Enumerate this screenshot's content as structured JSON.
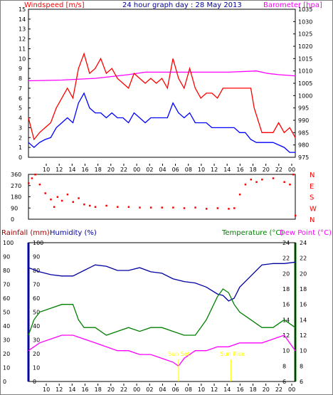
{
  "header": {
    "windspeed_label": "Windspeed [m/s]",
    "title": "24 hour graph day : 28 May 2013",
    "barometer_label": "Barometer [hpa]",
    "rainfall_label": "Rainfall (mm)",
    "humidity_label": "Humidity (%)",
    "temperature_label": "Temperature (°C)",
    "dewpoint_label": "Dew Point (°C)",
    "sunset_label": "Sun Set",
    "sunrise_label": "Sun Rise"
  },
  "x_ticks": [
    "10",
    "12",
    "14",
    "16",
    "18",
    "20",
    "22",
    "00",
    "02",
    "04",
    "06",
    "08",
    "10",
    "12",
    "14",
    "16",
    "18",
    "20",
    "22",
    "00"
  ],
  "colors": {
    "wind_gust": "#ff0000",
    "wind_avg": "#0000ff",
    "barometer": "#ff00ff",
    "direction": "#ff0000",
    "humidity": "#0000a0",
    "temperature": "#008000",
    "dewpoint": "#ff00ff",
    "sun_marker": "#ffff00",
    "rain_axis": "#0000ff",
    "temp_axis": "#008000"
  },
  "chart_data": [
    {
      "type": "line",
      "title": "24 hour graph day : 28 May 2013",
      "ylabel": "Windspeed [m/s]",
      "y2label": "Barometer [hpa]",
      "ylim": [
        0,
        15
      ],
      "y2lim": [
        975,
        1035
      ],
      "yticks": [
        "0",
        "1",
        "2",
        "3",
        "4",
        "5",
        "6",
        "7",
        "8",
        "9",
        "10",
        "11",
        "12",
        "13",
        "14",
        "15"
      ],
      "y2ticks": [
        "975",
        "980",
        "985",
        "990",
        "995",
        "1000",
        "1005",
        "1010",
        "1015",
        "1020",
        "1025",
        "1030",
        "1035"
      ],
      "x_hours": [
        0,
        24
      ],
      "series": [
        {
          "points": [
            [
              0,
              4
            ],
            [
              0.5,
              1.8
            ],
            [
              1,
              2.5
            ],
            [
              1.5,
              3
            ],
            [
              2,
              3.5
            ],
            [
              2.5,
              5
            ],
            [
              3,
              6
            ],
            [
              3.5,
              7
            ],
            [
              4,
              6
            ],
            [
              4.5,
              9
            ],
            [
              5,
              10.5
            ],
            [
              5.5,
              8.5
            ],
            [
              6,
              9
            ],
            [
              6.5,
              10
            ],
            [
              7,
              8.5
            ],
            [
              7.5,
              9
            ],
            [
              8,
              8
            ],
            [
              8.5,
              7.5
            ],
            [
              9,
              7
            ],
            [
              9.5,
              8.5
            ],
            [
              10,
              8
            ],
            [
              10.5,
              7.5
            ],
            [
              11,
              8
            ],
            [
              11.5,
              7.5
            ],
            [
              12,
              8
            ],
            [
              12.5,
              7
            ],
            [
              13,
              10
            ],
            [
              13.5,
              8
            ],
            [
              14,
              7
            ],
            [
              14.5,
              9
            ],
            [
              15,
              7
            ],
            [
              15.5,
              6
            ],
            [
              16,
              6.5
            ],
            [
              16.5,
              6.5
            ],
            [
              17,
              6
            ],
            [
              17.5,
              7
            ],
            [
              18,
              7
            ],
            [
              19,
              7
            ],
            [
              20,
              7
            ],
            [
              20.3,
              5
            ],
            [
              21,
              2.5
            ],
            [
              22,
              2.5
            ],
            [
              22.5,
              3.5
            ],
            [
              23,
              2.5
            ],
            [
              23.5,
              3
            ],
            [
              24,
              2
            ]
          ]
        },
        {
          "points": [
            [
              0,
              1.5
            ],
            [
              0.5,
              1
            ],
            [
              1,
              1.5
            ],
            [
              1.5,
              1.8
            ],
            [
              2,
              2
            ],
            [
              2.5,
              3
            ],
            [
              3,
              3.5
            ],
            [
              3.5,
              4
            ],
            [
              4,
              3.5
            ],
            [
              4.5,
              5.5
            ],
            [
              5,
              6.5
            ],
            [
              5.5,
              5
            ],
            [
              6,
              4.5
            ],
            [
              6.5,
              4.5
            ],
            [
              7,
              4
            ],
            [
              7.5,
              4.5
            ],
            [
              8,
              4
            ],
            [
              8.5,
              4
            ],
            [
              9,
              3.5
            ],
            [
              9.5,
              4.5
            ],
            [
              10,
              4
            ],
            [
              10.5,
              3.5
            ],
            [
              11,
              4
            ],
            [
              11.5,
              4
            ],
            [
              12,
              4
            ],
            [
              12.5,
              4
            ],
            [
              13,
              5.5
            ],
            [
              13.5,
              4.5
            ],
            [
              14,
              4
            ],
            [
              14.5,
              4.5
            ],
            [
              15,
              3.5
            ],
            [
              15.5,
              3.5
            ],
            [
              16,
              3.5
            ],
            [
              16.5,
              3
            ],
            [
              17,
              3
            ],
            [
              17.5,
              3
            ],
            [
              18,
              3
            ],
            [
              18.5,
              3
            ],
            [
              19,
              2.5
            ],
            [
              19.5,
              2.5
            ],
            [
              20,
              1.8
            ],
            [
              20.5,
              1.5
            ],
            [
              21,
              1.5
            ],
            [
              22,
              1.5
            ],
            [
              23,
              1
            ],
            [
              23.5,
              0.5
            ],
            [
              24,
              0.5
            ]
          ]
        },
        {
          "points": [
            [
              0,
              1006
            ],
            [
              3,
              1006.3
            ],
            [
              6,
              1007
            ],
            [
              9,
              1008.5
            ],
            [
              10.5,
              1009.5
            ],
            [
              12,
              1009.5
            ],
            [
              15,
              1009.5
            ],
            [
              18,
              1009.5
            ],
            [
              20.5,
              1010
            ],
            [
              21.5,
              1009
            ],
            [
              22.5,
              1008.5
            ],
            [
              24,
              1008
            ]
          ]
        }
      ]
    },
    {
      "type": "scatter",
      "ylabel": "",
      "ylim": [
        0,
        360
      ],
      "yticks": [
        "0",
        "90",
        "180",
        "270",
        "360"
      ],
      "y2ticks": [
        "N",
        "W",
        "S",
        "E",
        "N"
      ],
      "x_hours": [
        0,
        24
      ],
      "values": [
        [
          0,
          290
        ],
        [
          0.3,
          330
        ],
        [
          0.6,
          360
        ],
        [
          1,
          280
        ],
        [
          1.5,
          210
        ],
        [
          2,
          160
        ],
        [
          2.3,
          100
        ],
        [
          2.6,
          180
        ],
        [
          3,
          150
        ],
        [
          3.5,
          200
        ],
        [
          4,
          140
        ],
        [
          4.5,
          170
        ],
        [
          5,
          120
        ],
        [
          5.5,
          110
        ],
        [
          6,
          100
        ],
        [
          7,
          110
        ],
        [
          8,
          100
        ],
        [
          9,
          100
        ],
        [
          10,
          95
        ],
        [
          11,
          95
        ],
        [
          12,
          95
        ],
        [
          13,
          95
        ],
        [
          14,
          90
        ],
        [
          15,
          95
        ],
        [
          16,
          85
        ],
        [
          17,
          90
        ],
        [
          18,
          85
        ],
        [
          18.5,
          90
        ],
        [
          19,
          200
        ],
        [
          19.5,
          280
        ],
        [
          20,
          320
        ],
        [
          20.5,
          300
        ],
        [
          21,
          320
        ],
        [
          22,
          330
        ],
        [
          23,
          300
        ],
        [
          23.5,
          280
        ],
        [
          23.8,
          360
        ],
        [
          24,
          30
        ]
      ]
    },
    {
      "type": "line",
      "ylabel": "Rainfall (mm)",
      "y2label": "Temperature (°C)",
      "ylim": [
        0,
        100
      ],
      "y2lim": [
        6,
        24
      ],
      "yticks": [
        "0",
        "10",
        "20",
        "30",
        "40",
        "50",
        "60",
        "70",
        "80",
        "90",
        "100"
      ],
      "y2ticks": [
        "6",
        "8",
        "10",
        "12",
        "14",
        "16",
        "18",
        "20",
        "22",
        "24"
      ],
      "x_hours": [
        0,
        24
      ],
      "series": [
        {
          "points": [
            [
              0,
              82
            ],
            [
              1,
              79
            ],
            [
              2,
              77
            ],
            [
              3,
              76
            ],
            [
              4,
              76
            ],
            [
              5,
              80
            ],
            [
              6,
              84
            ],
            [
              7,
              83
            ],
            [
              8,
              80
            ],
            [
              9,
              80
            ],
            [
              10,
              82
            ],
            [
              11,
              79
            ],
            [
              12,
              78
            ],
            [
              13,
              74
            ],
            [
              14,
              72
            ],
            [
              15,
              71
            ],
            [
              16,
              68
            ],
            [
              17,
              63
            ],
            [
              17.5,
              62
            ],
            [
              18,
              58
            ],
            [
              18.5,
              60
            ],
            [
              19,
              68
            ],
            [
              20,
              76
            ],
            [
              21,
              84
            ],
            [
              22,
              85
            ],
            [
              23,
              85
            ],
            [
              24,
              86
            ]
          ]
        },
        {
          "points": [
            [
              0,
              12
            ],
            [
              0.5,
              14
            ],
            [
              1,
              15
            ],
            [
              2,
              15.5
            ],
            [
              3,
              16
            ],
            [
              4,
              16
            ],
            [
              4.5,
              14
            ],
            [
              5,
              13
            ],
            [
              6,
              13
            ],
            [
              7,
              12
            ],
            [
              8,
              12.5
            ],
            [
              9,
              13
            ],
            [
              10,
              12.5
            ],
            [
              11,
              13
            ],
            [
              12,
              13
            ],
            [
              13,
              12.5
            ],
            [
              14,
              12
            ],
            [
              15,
              12
            ],
            [
              15.5,
              13
            ],
            [
              16,
              14
            ],
            [
              17,
              17
            ],
            [
              17.5,
              18
            ],
            [
              18,
              17.5
            ],
            [
              18.5,
              16
            ],
            [
              19,
              15
            ],
            [
              20,
              14
            ],
            [
              21,
              13
            ],
            [
              22,
              13
            ],
            [
              23,
              14
            ],
            [
              24,
              13
            ]
          ]
        },
        {
          "points": [
            [
              0,
              10
            ],
            [
              1,
              11
            ],
            [
              2,
              11.5
            ],
            [
              3,
              12
            ],
            [
              4,
              12
            ],
            [
              5,
              11.5
            ],
            [
              6,
              11
            ],
            [
              7,
              10.5
            ],
            [
              8,
              10
            ],
            [
              9,
              10
            ],
            [
              10,
              9.5
            ],
            [
              11,
              9.5
            ],
            [
              12,
              9
            ],
            [
              13,
              8.5
            ],
            [
              13.5,
              8
            ],
            [
              14,
              9
            ],
            [
              15,
              10
            ],
            [
              16,
              10
            ],
            [
              17,
              10.5
            ],
            [
              18,
              10.5
            ],
            [
              19,
              11
            ],
            [
              20,
              11
            ],
            [
              21,
              11
            ],
            [
              22,
              11.5
            ],
            [
              23,
              12
            ],
            [
              24,
              10
            ]
          ]
        }
      ],
      "sunset_hour": 13.5,
      "sunrise_hour": 18.2
    }
  ]
}
